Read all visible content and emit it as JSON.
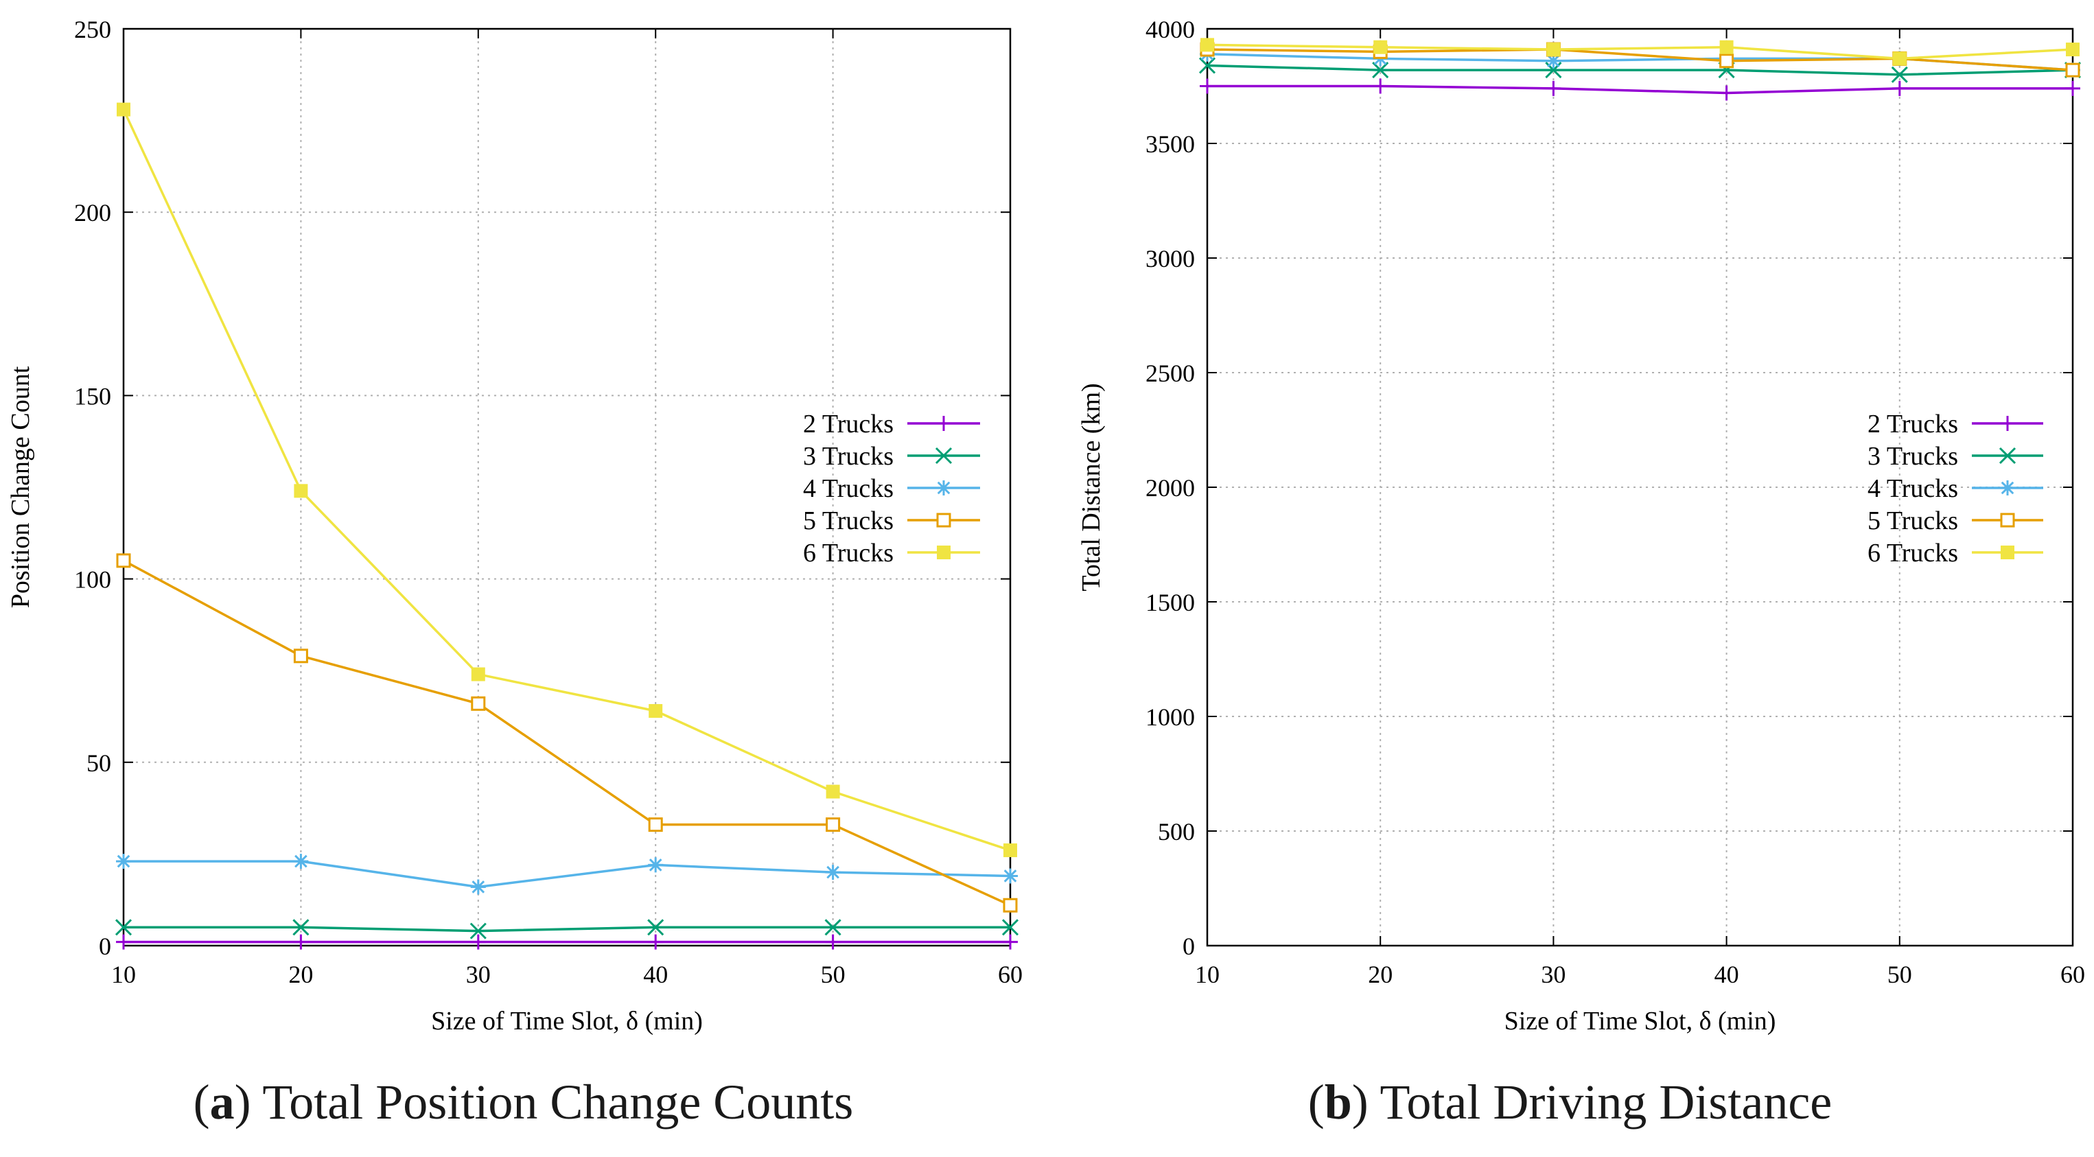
{
  "chart_data": [
    {
      "type": "line",
      "x": [
        10,
        20,
        30,
        40,
        50,
        60
      ],
      "xlabel": "Size of Time Slot, δ (min)",
      "ylabel": "Position Change Count",
      "xlim": [
        10,
        60
      ],
      "ylim": [
        0,
        250
      ],
      "xticks": [
        10,
        20,
        30,
        40,
        50,
        60
      ],
      "yticks": [
        0,
        50,
        100,
        150,
        200,
        250
      ],
      "grid": true,
      "legend_position": "right-middle",
      "series": [
        {
          "name": "2 Trucks",
          "marker": "plus",
          "color": "#9400d3",
          "values": [
            1,
            1,
            1,
            1,
            1,
            1
          ]
        },
        {
          "name": "3 Trucks",
          "marker": "cross",
          "color": "#009e73",
          "values": [
            5,
            5,
            4,
            5,
            5,
            5
          ]
        },
        {
          "name": "4 Trucks",
          "marker": "star",
          "color": "#56b4e9",
          "values": [
            23,
            23,
            16,
            22,
            20,
            19
          ]
        },
        {
          "name": "5 Trucks",
          "marker": "square-open",
          "color": "#e69f00",
          "values": [
            105,
            79,
            66,
            33,
            33,
            11
          ]
        },
        {
          "name": "6 Trucks",
          "marker": "square-filled",
          "color": "#f0e442",
          "values": [
            228,
            124,
            74,
            64,
            42,
            26
          ]
        }
      ],
      "caption_label": "a",
      "caption_text": "Total Position Change Counts"
    },
    {
      "type": "line",
      "x": [
        10,
        20,
        30,
        40,
        50,
        60
      ],
      "xlabel": "Size of Time Slot, δ (min)",
      "ylabel": "Total Distance (km)",
      "xlim": [
        10,
        60
      ],
      "ylim": [
        0,
        4000
      ],
      "xticks": [
        10,
        20,
        30,
        40,
        50,
        60
      ],
      "yticks": [
        0,
        500,
        1000,
        1500,
        2000,
        2500,
        3000,
        3500,
        4000
      ],
      "grid": true,
      "legend_position": "right-middle",
      "series": [
        {
          "name": "2 Trucks",
          "marker": "plus",
          "color": "#9400d3",
          "values": [
            3750,
            3750,
            3740,
            3720,
            3740,
            3740
          ]
        },
        {
          "name": "3 Trucks",
          "marker": "cross",
          "color": "#009e73",
          "values": [
            3840,
            3820,
            3820,
            3820,
            3800,
            3820
          ]
        },
        {
          "name": "4 Trucks",
          "marker": "star",
          "color": "#56b4e9",
          "values": [
            3890,
            3870,
            3860,
            3870,
            3870,
            3820
          ]
        },
        {
          "name": "5 Trucks",
          "marker": "square-open",
          "color": "#e69f00",
          "values": [
            3910,
            3900,
            3910,
            3860,
            3870,
            3820
          ]
        },
        {
          "name": "6 Trucks",
          "marker": "square-filled",
          "color": "#f0e442",
          "values": [
            3930,
            3920,
            3910,
            3920,
            3870,
            3910
          ]
        }
      ],
      "caption_label": "b",
      "caption_text": "Total Driving Distance"
    }
  ]
}
